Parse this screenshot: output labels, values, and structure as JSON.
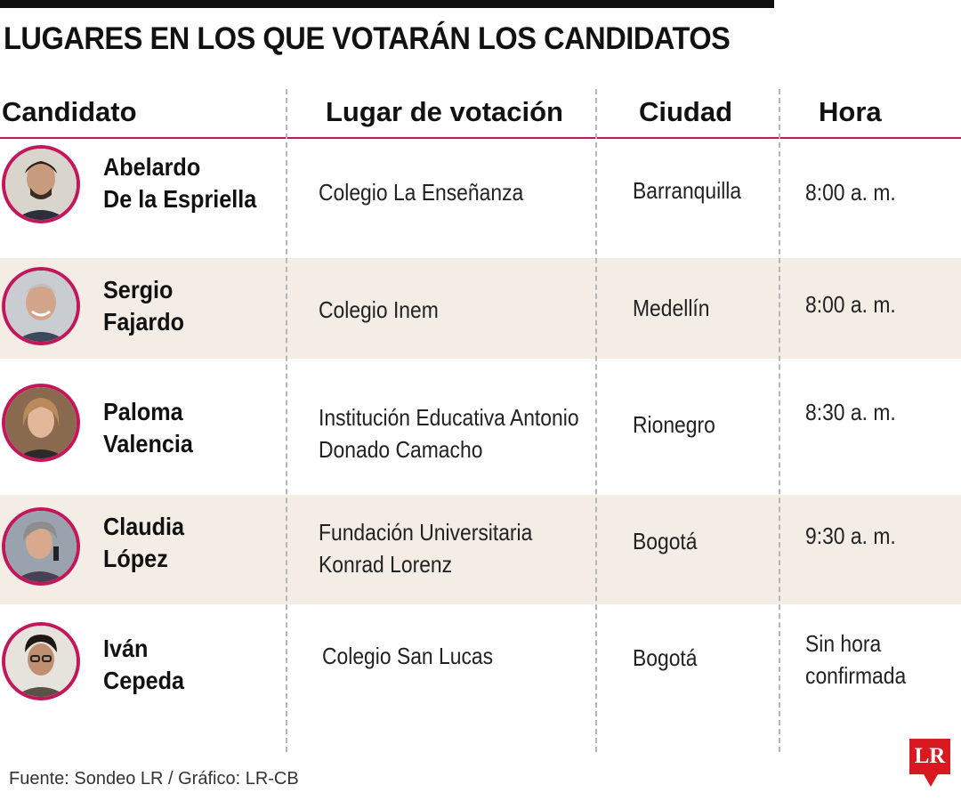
{
  "title": "LUGARES EN LOS QUE VOTARÁN LOS CANDIDATOS",
  "headers": {
    "candidate": "Candidato",
    "place": "Lugar de votación",
    "city": "Ciudad",
    "time": "Hora"
  },
  "rows": [
    {
      "name1": "Abelardo",
      "name2": "De la Espriella",
      "place1": "Colegio La Enseñanza",
      "place2": "",
      "city": "Barranquilla",
      "time1": "8:00 a. m.",
      "time2": ""
    },
    {
      "name1": "Sergio",
      "name2": "Fajardo",
      "place1": "Colegio Inem",
      "place2": "",
      "city": "Medellín",
      "time1": "8:00 a. m.",
      "time2": ""
    },
    {
      "name1": "Paloma",
      "name2": "Valencia",
      "place1": "Institución Educativa Antonio",
      "place2": "Donado Camacho",
      "city": "Rionegro",
      "time1": "8:30 a. m.",
      "time2": ""
    },
    {
      "name1": "Claudia",
      "name2": "López",
      "place1": "Fundación Universitaria",
      "place2": "Konrad Lorenz",
      "city": "Bogotá",
      "time1": "9:30 a. m.",
      "time2": ""
    },
    {
      "name1": "Iván",
      "name2": "Cepeda",
      "place1": "Colegio San Lucas",
      "place2": "",
      "city": "Bogotá",
      "time1": "Sin hora",
      "time2": "confirmada"
    }
  ],
  "footer": "Fuente: Sondeo LR  / Gráfico: LR-CB",
  "logo": "LR",
  "colors": {
    "accent": "#c2185b",
    "shade": "#f4ede5",
    "logo": "#d71920"
  }
}
